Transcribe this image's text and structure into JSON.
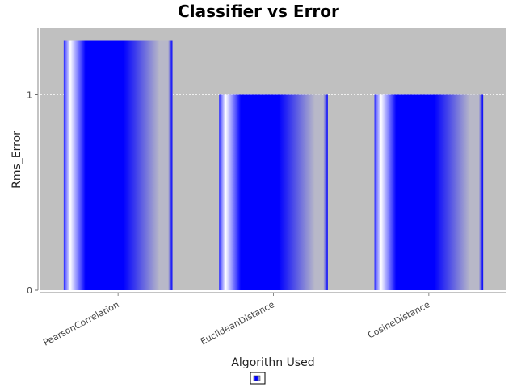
{
  "chart_data": {
    "type": "bar",
    "title": "Classifier vs Error",
    "xlabel": "Algorithn Used",
    "ylabel": "Rms_Error",
    "categories": [
      "PearsonCorrelation",
      "EuclideanDistance",
      "CosineDistance"
    ],
    "series": [
      {
        "values": [
          1.276,
          1.0,
          1.0
        ]
      }
    ],
    "ylim": [
      0,
      1.34
    ],
    "yticks": [
      0,
      1
    ],
    "grid": true,
    "legend_position": "bottom",
    "colors": {
      "plot_background": "#c0c0c0",
      "bar": "#0000ff",
      "gridline": "#ffffff"
    }
  }
}
